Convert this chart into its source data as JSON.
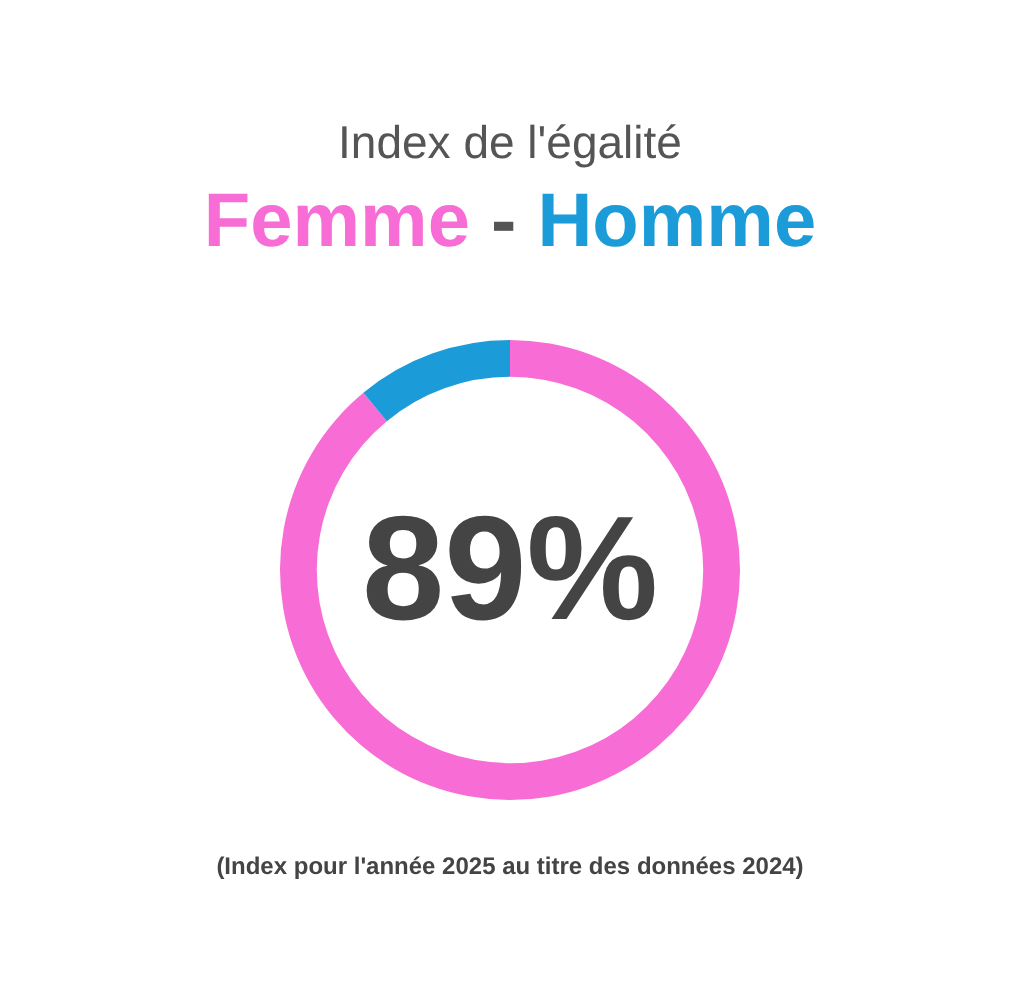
{
  "chart_data": {
    "type": "donut",
    "title": "Index de l'égalité",
    "subtitle": "Femme - Homme",
    "categories": [
      null,
      null
    ],
    "values": [
      89,
      11
    ],
    "colors": [
      "#f76dd5",
      "#1b9bd7"
    ],
    "value_labels": [
      "89%",
      null
    ],
    "legend": false,
    "annotations": [
      "(Index pour l'année 2025 au titre des données 2024)"
    ]
  }
}
